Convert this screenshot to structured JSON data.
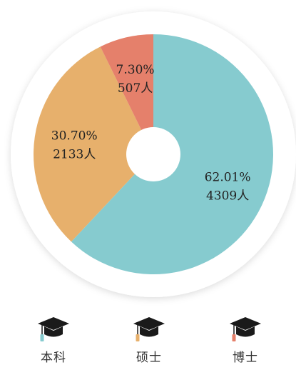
{
  "chart_data": {
    "type": "pie",
    "categories": [
      "本科",
      "硕士",
      "博士"
    ],
    "values": [
      4309,
      2133,
      507
    ],
    "percent_labels": [
      "62.01%",
      "30.70%",
      "7.30%"
    ],
    "count_labels": [
      "4309人",
      "2133人",
      "507人"
    ],
    "colors": [
      "#86cbcf",
      "#e7b06c",
      "#e5806b"
    ],
    "donut": true,
    "legend_position": "bottom"
  },
  "legend": {
    "items": [
      {
        "label": "本科",
        "icon": "graduation-cap-icon",
        "tassel_color": "#86cbcf"
      },
      {
        "label": "硕士",
        "icon": "graduation-cap-icon",
        "tassel_color": "#e7b06c"
      },
      {
        "label": "博士",
        "icon": "graduation-cap-icon",
        "tassel_color": "#e5806b"
      }
    ]
  }
}
